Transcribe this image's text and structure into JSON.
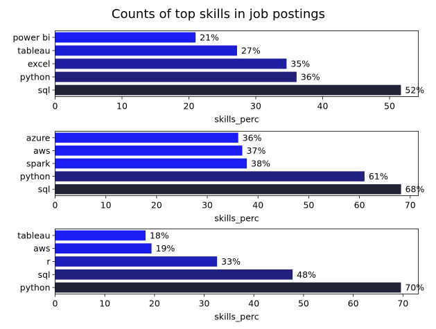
{
  "title": "Counts of top skills in job postings",
  "chart_data": [
    {
      "type": "bar",
      "orientation": "horizontal",
      "categories": [
        "power bi",
        "tableau",
        "excel",
        "python",
        "sql"
      ],
      "values": [
        21,
        27.2,
        34.6,
        36.1,
        51.7
      ],
      "value_labels": [
        "21%",
        "27%",
        "35%",
        "36%",
        "52%"
      ],
      "colors": [
        "#1a1ef5",
        "#1c1cd6",
        "#1f1fa0",
        "#211f7a",
        "#232338"
      ],
      "xlabel": "skills_perc",
      "xlim": [
        0,
        54.3
      ],
      "xticks": [
        0,
        10,
        20,
        30,
        40,
        50
      ]
    },
    {
      "type": "bar",
      "orientation": "horizontal",
      "categories": [
        "azure",
        "aws",
        "spark",
        "python",
        "sql"
      ],
      "values": [
        36.1,
        36.9,
        37.8,
        61,
        68.2
      ],
      "value_labels": [
        "36%",
        "37%",
        "38%",
        "61%",
        "68%"
      ],
      "colors": [
        "#1a1ef5",
        "#1a1ef5",
        "#1a1ef5",
        "#212080",
        "#232338"
      ],
      "xlabel": "skills_perc",
      "xlim": [
        0,
        71.6
      ],
      "xticks": [
        0,
        10,
        20,
        30,
        40,
        50,
        60,
        70
      ]
    },
    {
      "type": "bar",
      "orientation": "horizontal",
      "categories": [
        "tableau",
        "aws",
        "r",
        "sql",
        "python"
      ],
      "values": [
        18.2,
        19.4,
        32.6,
        47.8,
        69.6
      ],
      "value_labels": [
        "18%",
        "19%",
        "33%",
        "48%",
        "70%"
      ],
      "colors": [
        "#1a1ef5",
        "#1c1ce8",
        "#1e1eb8",
        "#211f80",
        "#232338"
      ],
      "xlabel": "skills_perc",
      "xlim": [
        0,
        73.1
      ],
      "xticks": [
        0,
        10,
        20,
        30,
        40,
        50,
        60,
        70
      ]
    }
  ]
}
